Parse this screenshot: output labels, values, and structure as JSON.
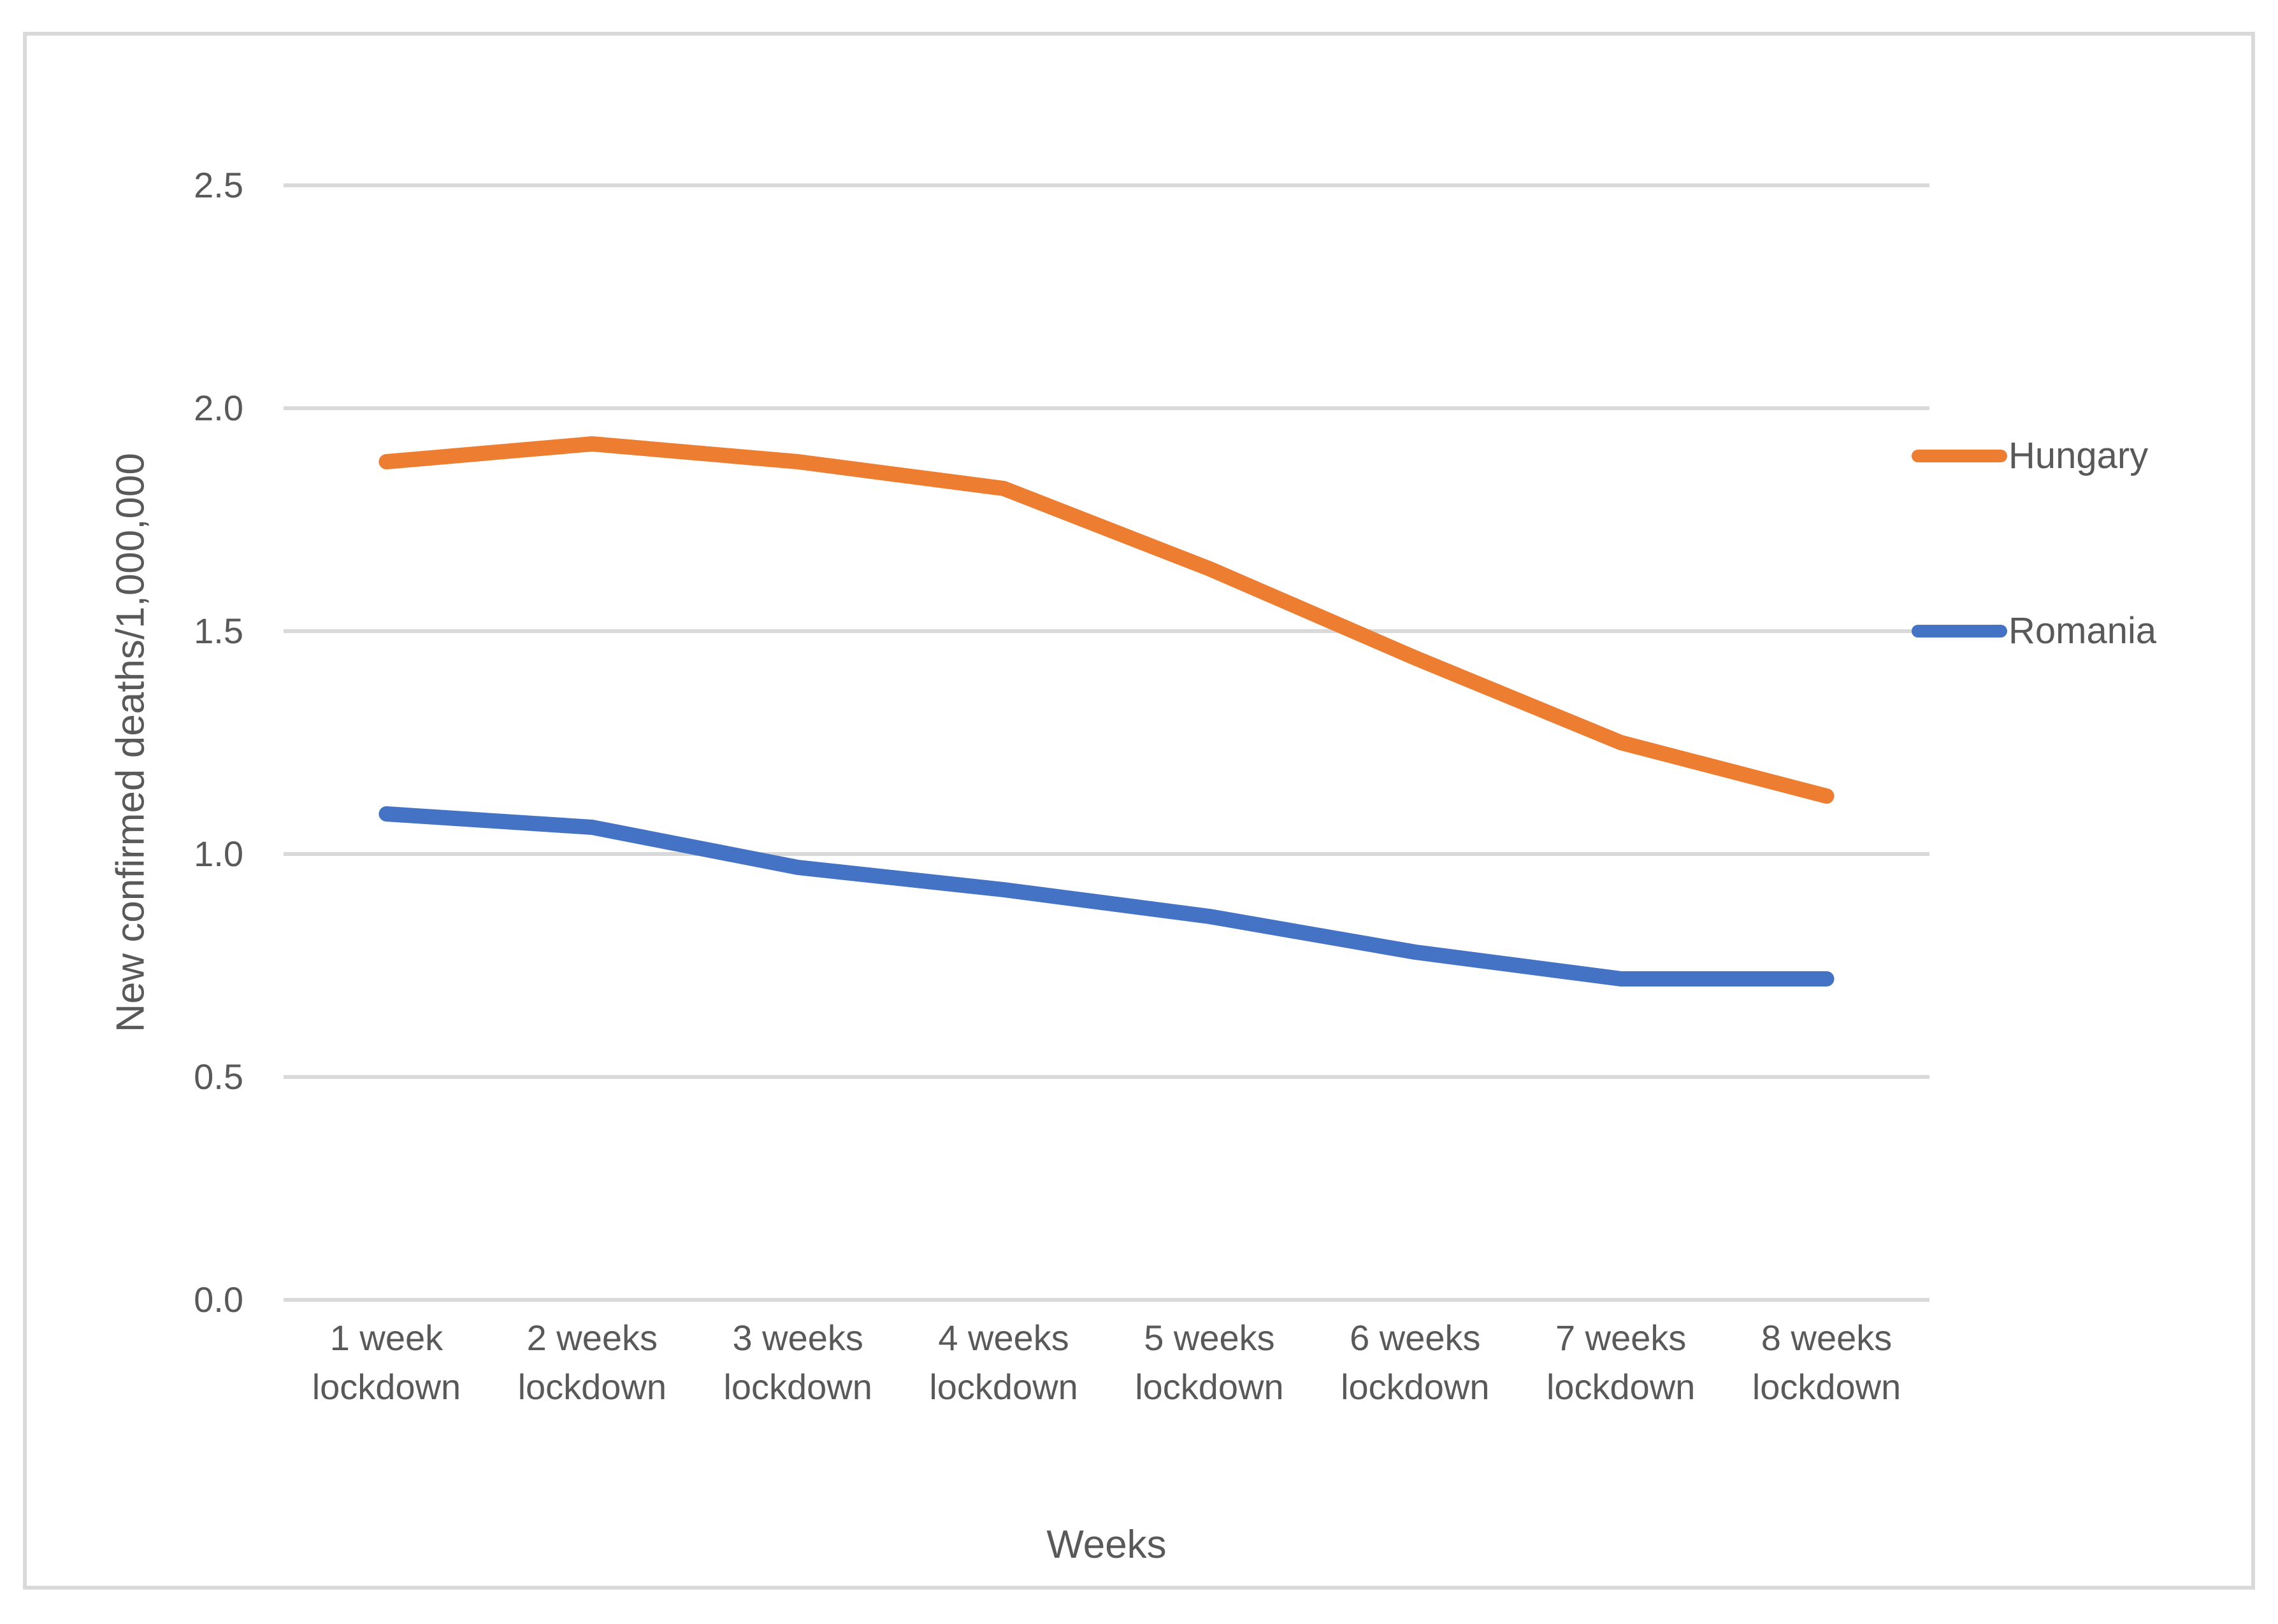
{
  "figure": {
    "background": "#ffffff",
    "border_color": "#d9d9d9",
    "gridline_color": "#d9d9d9",
    "text_color": "#595959"
  },
  "chart_data": {
    "type": "line",
    "title": "",
    "xlabel": "Weeks",
    "ylabel": "New confirmed deaths/1,000,000",
    "ylim": [
      0.0,
      2.5
    ],
    "y_ticks": [
      "0.0",
      "0.5",
      "1.0",
      "1.5",
      "2.0",
      "2.5"
    ],
    "grid": "horizontal",
    "legend_position": "right",
    "categories": [
      "1 week lockdown",
      "2 weeks lockdown",
      "3 weeks lockdown",
      "4 weeks lockdown",
      "5 weeks lockdown",
      "6 weeks lockdown",
      "7 weeks lockdown",
      "8 weeks lockdown"
    ],
    "x_tick_lines": [
      [
        "1 week",
        "lockdown"
      ],
      [
        "2 weeks",
        "lockdown"
      ],
      [
        "3 weeks",
        "lockdown"
      ],
      [
        "4 weeks",
        "lockdown"
      ],
      [
        "5 weeks",
        "lockdown"
      ],
      [
        "6 weeks",
        "lockdown"
      ],
      [
        "7 weeks",
        "lockdown"
      ],
      [
        "8 weeks",
        "lockdown"
      ]
    ],
    "series": [
      {
        "name": "Hungary",
        "color": "#ED7D31",
        "values": [
          1.88,
          1.92,
          1.88,
          1.82,
          1.64,
          1.44,
          1.25,
          1.13
        ]
      },
      {
        "name": "Romania",
        "color": "#4472C4",
        "values": [
          1.09,
          1.06,
          0.97,
          0.92,
          0.86,
          0.78,
          0.72,
          0.72
        ]
      }
    ]
  }
}
